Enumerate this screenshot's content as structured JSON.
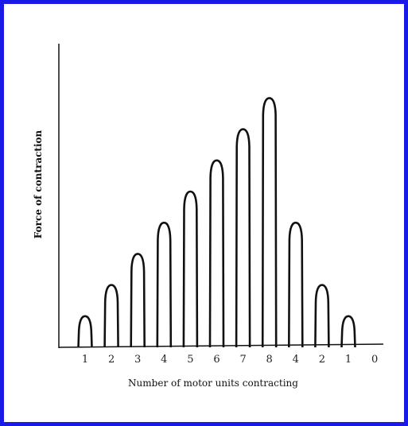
{
  "colors": {
    "frame_border": "#1919e8",
    "ink": "#111111",
    "background": "#ffffff"
  },
  "chart_data": {
    "type": "bar",
    "title": "",
    "xlabel": "Number of motor units contracting",
    "ylabel": "Force of contraction",
    "categories": [
      "1",
      "2",
      "3",
      "4",
      "5",
      "6",
      "7",
      "8",
      "4",
      "2",
      "1",
      "0"
    ],
    "values": [
      1,
      2,
      3,
      4,
      5,
      6,
      7,
      8,
      4,
      2,
      1,
      0
    ],
    "ylim": [
      0,
      8.5
    ],
    "grid": false,
    "legend": "none",
    "mark_shape": "rounded-peak"
  }
}
